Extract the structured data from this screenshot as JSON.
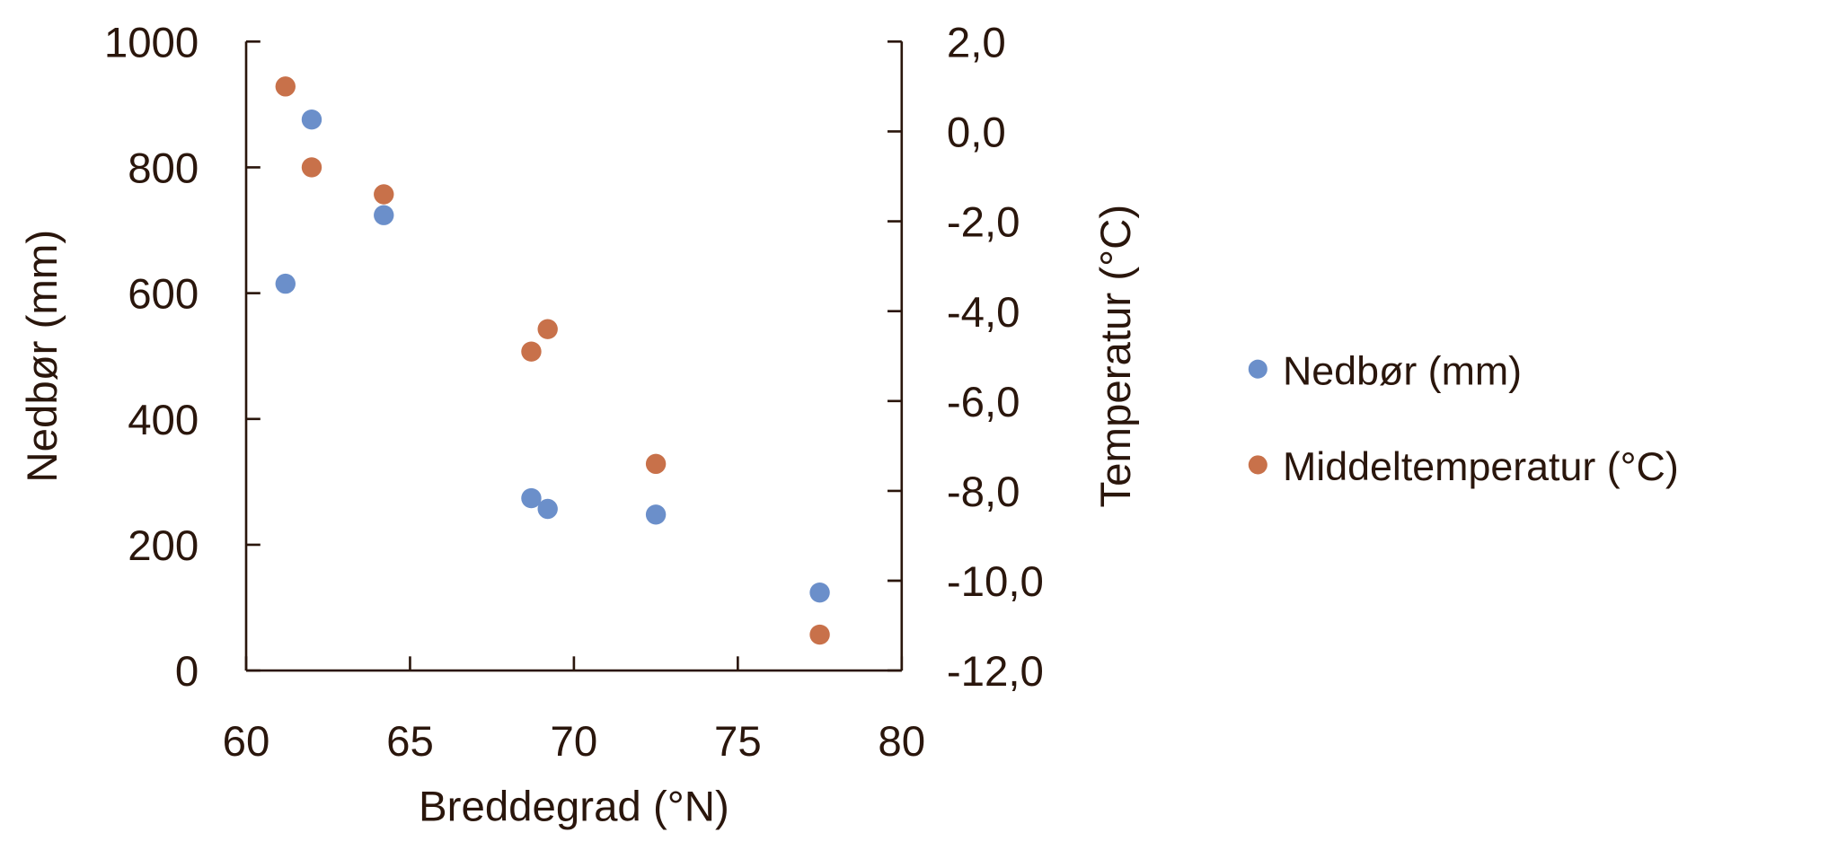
{
  "chart_data": {
    "type": "scatter",
    "title": "",
    "xlabel": "Breddegrad (°N)",
    "ylabel": "Nedbør (mm)",
    "y2label": "Temperatur (°C)",
    "xlim": [
      60,
      80
    ],
    "ylim": [
      0,
      1000
    ],
    "y2lim": [
      -12,
      2
    ],
    "xticks": [
      "60",
      "65",
      "70",
      "75",
      "80"
    ],
    "yticks": [
      "0",
      "200",
      "400",
      "600",
      "800",
      "1000"
    ],
    "y2ticks": [
      "-12,0",
      "-10,0",
      "-8,0",
      "-6,0",
      "-4,0",
      "-2,0",
      "0,0",
      "2,0"
    ],
    "legend_position": "right",
    "series": [
      {
        "name": "Nedbør (mm)",
        "axis": "left",
        "color": "#6b8fca",
        "x": [
          61.2,
          62.0,
          64.2,
          68.7,
          69.2,
          72.5,
          77.5
        ],
        "y": [
          615,
          876,
          724,
          274,
          257,
          248,
          124
        ]
      },
      {
        "name": "Middeltemperatur (°C)",
        "axis": "right",
        "color": "#c8714a",
        "x": [
          61.2,
          62.0,
          64.2,
          68.7,
          69.2,
          72.5,
          77.5
        ],
        "y": [
          1.0,
          -0.8,
          -1.4,
          -4.9,
          -4.4,
          -7.4,
          -11.2
        ]
      }
    ]
  }
}
